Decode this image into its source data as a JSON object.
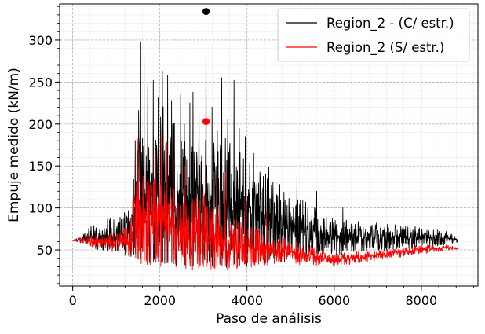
{
  "chart_data": {
    "type": "line",
    "xlabel": "Paso de análisis",
    "ylabel": "Empuje medido (kN/m)",
    "xlim": [
      -300,
      9300
    ],
    "ylim": [
      7,
      343
    ],
    "xticks": [
      0,
      2000,
      4000,
      6000,
      8000
    ],
    "yticks": [
      50,
      100,
      150,
      200,
      250,
      300
    ],
    "grid": true,
    "legend_position": "top-right",
    "series": [
      {
        "name": "Region_2 - (C/ estr.)",
        "color": "#000000",
        "envelope": [
          {
            "x": 0,
            "lo": 61,
            "hi": 62
          },
          {
            "x": 200,
            "lo": 58,
            "hi": 66
          },
          {
            "x": 400,
            "lo": 52,
            "hi": 78
          },
          {
            "x": 700,
            "lo": 48,
            "hi": 86
          },
          {
            "x": 1000,
            "lo": 45,
            "hi": 90
          },
          {
            "x": 1300,
            "lo": 40,
            "hi": 100
          },
          {
            "x": 1500,
            "lo": 35,
            "hi": 230
          },
          {
            "x": 1600,
            "lo": 35,
            "hi": 220
          },
          {
            "x": 1800,
            "lo": 32,
            "hi": 200
          },
          {
            "x": 2100,
            "lo": 30,
            "hi": 230
          },
          {
            "x": 2400,
            "lo": 30,
            "hi": 200
          },
          {
            "x": 2700,
            "lo": 26,
            "hi": 190
          },
          {
            "x": 3000,
            "lo": 25,
            "hi": 180
          },
          {
            "x": 3300,
            "lo": 26,
            "hi": 200
          },
          {
            "x": 3600,
            "lo": 28,
            "hi": 190
          },
          {
            "x": 4000,
            "lo": 30,
            "hi": 160
          },
          {
            "x": 4500,
            "lo": 33,
            "hi": 140
          },
          {
            "x": 5000,
            "lo": 35,
            "hi": 115
          },
          {
            "x": 5500,
            "lo": 40,
            "hi": 105
          },
          {
            "x": 6000,
            "lo": 43,
            "hi": 90
          },
          {
            "x": 7000,
            "lo": 47,
            "hi": 82
          },
          {
            "x": 8000,
            "lo": 52,
            "hi": 77
          },
          {
            "x": 8600,
            "lo": 56,
            "hi": 72
          },
          {
            "x": 8850,
            "lo": 58,
            "hi": 64
          }
        ],
        "spikes": [
          {
            "x": 1560,
            "y": 298
          },
          {
            "x": 1640,
            "y": 280
          },
          {
            "x": 1720,
            "y": 245
          },
          {
            "x": 1850,
            "y": 252
          },
          {
            "x": 1960,
            "y": 232
          },
          {
            "x": 2060,
            "y": 263
          },
          {
            "x": 2180,
            "y": 258
          },
          {
            "x": 2270,
            "y": 228
          },
          {
            "x": 2480,
            "y": 235
          },
          {
            "x": 2560,
            "y": 200
          },
          {
            "x": 2690,
            "y": 225
          },
          {
            "x": 2760,
            "y": 238
          },
          {
            "x": 2900,
            "y": 212
          },
          {
            "x": 3060,
            "y": 334
          },
          {
            "x": 3200,
            "y": 220
          },
          {
            "x": 3420,
            "y": 255
          },
          {
            "x": 3560,
            "y": 205
          },
          {
            "x": 3700,
            "y": 252
          },
          {
            "x": 3820,
            "y": 195
          },
          {
            "x": 3960,
            "y": 185
          },
          {
            "x": 4150,
            "y": 165
          },
          {
            "x": 4500,
            "y": 148
          },
          {
            "x": 4750,
            "y": 128
          },
          {
            "x": 5150,
            "y": 150
          },
          {
            "x": 5600,
            "y": 120
          },
          {
            "x": 6200,
            "y": 100
          }
        ],
        "peak": {
          "x": 3060,
          "y": 334
        }
      },
      {
        "name": "Region_2 (S/ estr.)",
        "color": "#ff0000",
        "envelope": [
          {
            "x": 0,
            "lo": 61,
            "hi": 62
          },
          {
            "x": 200,
            "lo": 58,
            "hi": 65
          },
          {
            "x": 400,
            "lo": 54,
            "hi": 68
          },
          {
            "x": 700,
            "lo": 50,
            "hi": 68
          },
          {
            "x": 1000,
            "lo": 47,
            "hi": 70
          },
          {
            "x": 1300,
            "lo": 42,
            "hi": 80
          },
          {
            "x": 1500,
            "lo": 35,
            "hi": 150
          },
          {
            "x": 1600,
            "lo": 33,
            "hi": 140
          },
          {
            "x": 1800,
            "lo": 30,
            "hi": 135
          },
          {
            "x": 2100,
            "lo": 30,
            "hi": 140
          },
          {
            "x": 2400,
            "lo": 28,
            "hi": 120
          },
          {
            "x": 2700,
            "lo": 26,
            "hi": 110
          },
          {
            "x": 3000,
            "lo": 25,
            "hi": 120
          },
          {
            "x": 3300,
            "lo": 26,
            "hi": 100
          },
          {
            "x": 3600,
            "lo": 27,
            "hi": 90
          },
          {
            "x": 4000,
            "lo": 29,
            "hi": 80
          },
          {
            "x": 4500,
            "lo": 31,
            "hi": 72
          },
          {
            "x": 5000,
            "lo": 32,
            "hi": 62
          },
          {
            "x": 5500,
            "lo": 32,
            "hi": 55
          },
          {
            "x": 6000,
            "lo": 30,
            "hi": 46
          },
          {
            "x": 7000,
            "lo": 37,
            "hi": 50
          },
          {
            "x": 8000,
            "lo": 45,
            "hi": 56
          },
          {
            "x": 8600,
            "lo": 49,
            "hi": 56
          },
          {
            "x": 8850,
            "lo": 50,
            "hi": 53
          }
        ],
        "spikes": [
          {
            "x": 1500,
            "y": 182
          },
          {
            "x": 1640,
            "y": 178
          },
          {
            "x": 1900,
            "y": 168
          },
          {
            "x": 2030,
            "y": 185
          },
          {
            "x": 2160,
            "y": 178
          },
          {
            "x": 2310,
            "y": 158
          },
          {
            "x": 2580,
            "y": 150
          },
          {
            "x": 2900,
            "y": 172
          },
          {
            "x": 3060,
            "y": 203
          },
          {
            "x": 3300,
            "y": 138
          },
          {
            "x": 3500,
            "y": 142
          },
          {
            "x": 3950,
            "y": 108
          },
          {
            "x": 4450,
            "y": 95
          }
        ],
        "peak": {
          "x": 3060,
          "y": 203
        }
      }
    ]
  }
}
